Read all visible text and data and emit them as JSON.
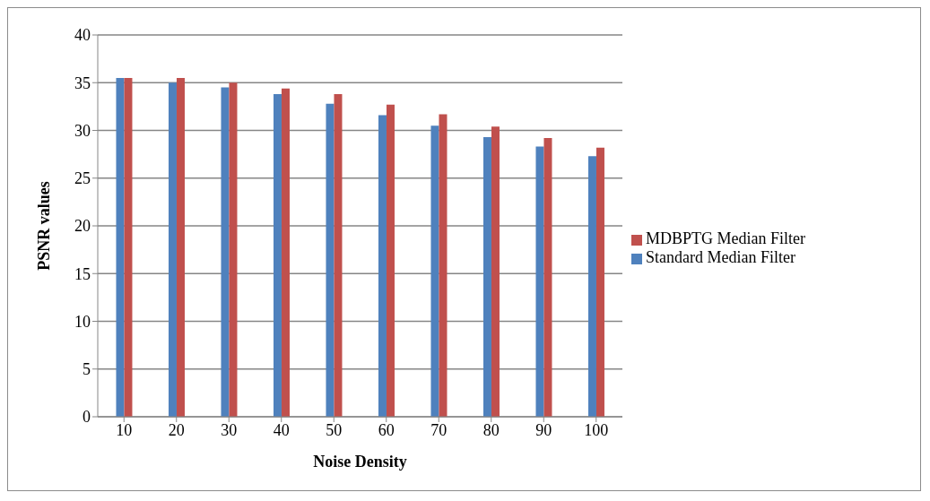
{
  "chart_data": {
    "type": "bar",
    "xlabel": "Noise Density",
    "ylabel": "PSNR values",
    "categories": [
      "10",
      "20",
      "30",
      "40",
      "50",
      "60",
      "70",
      "80",
      "90",
      "100"
    ],
    "series": [
      {
        "name": "Standard Median Filter",
        "color": "#4f81bd",
        "values": [
          35.5,
          35.0,
          34.5,
          33.8,
          32.8,
          31.6,
          30.5,
          29.3,
          28.3,
          27.3
        ]
      },
      {
        "name": "MDBPTG Median Filter",
        "color": "#c0504d",
        "values": [
          35.5,
          35.5,
          35.0,
          34.4,
          33.8,
          32.7,
          31.7,
          30.4,
          29.2,
          28.2
        ]
      }
    ],
    "ylim": [
      0,
      40
    ],
    "yticks": [
      0,
      5,
      10,
      15,
      20,
      25,
      30,
      35,
      40
    ],
    "grid": "y",
    "legend": "right"
  }
}
